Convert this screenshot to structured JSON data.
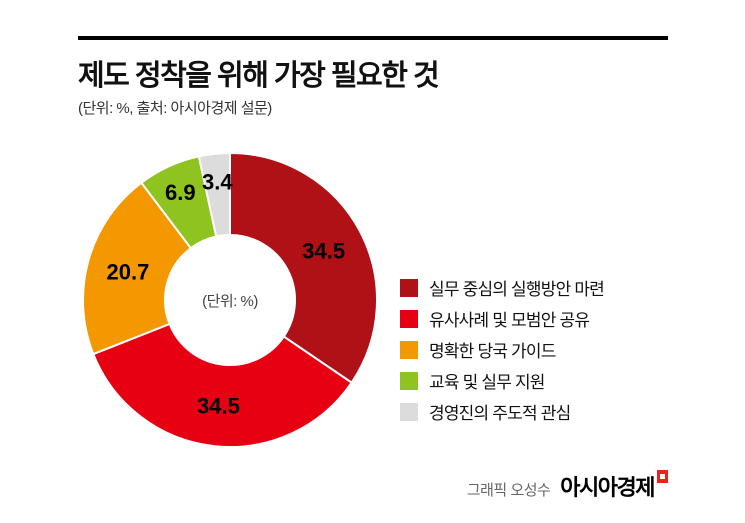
{
  "header": {
    "title": "제도 정착을 위해 가장 필요한 것",
    "subtitle": "(단위: %, 출처: 아시아경제 설문)"
  },
  "chart_data": {
    "type": "pie",
    "donut": true,
    "title": "제도 정착을 위해 가장 필요한 것",
    "unit": "%",
    "source": "아시아경제 설문",
    "center_label": "(단위: %)",
    "categories": [
      "실무 중심의 실행방안 마련",
      "유사사례 및 모범안 공유",
      "명확한 당국 가이드",
      "교육 및 실무 지원",
      "경영진의 주도적 관심"
    ],
    "values": [
      34.5,
      34.5,
      20.7,
      6.9,
      3.4
    ],
    "colors": [
      "#b01116",
      "#e60012",
      "#f39800",
      "#8fc31f",
      "#dcdcdc"
    ],
    "start_angle_deg": 0,
    "direction": "clockwise",
    "legend_position": "right"
  },
  "footer": {
    "credit": "그래픽 오성수",
    "brand": "아시아경제"
  }
}
